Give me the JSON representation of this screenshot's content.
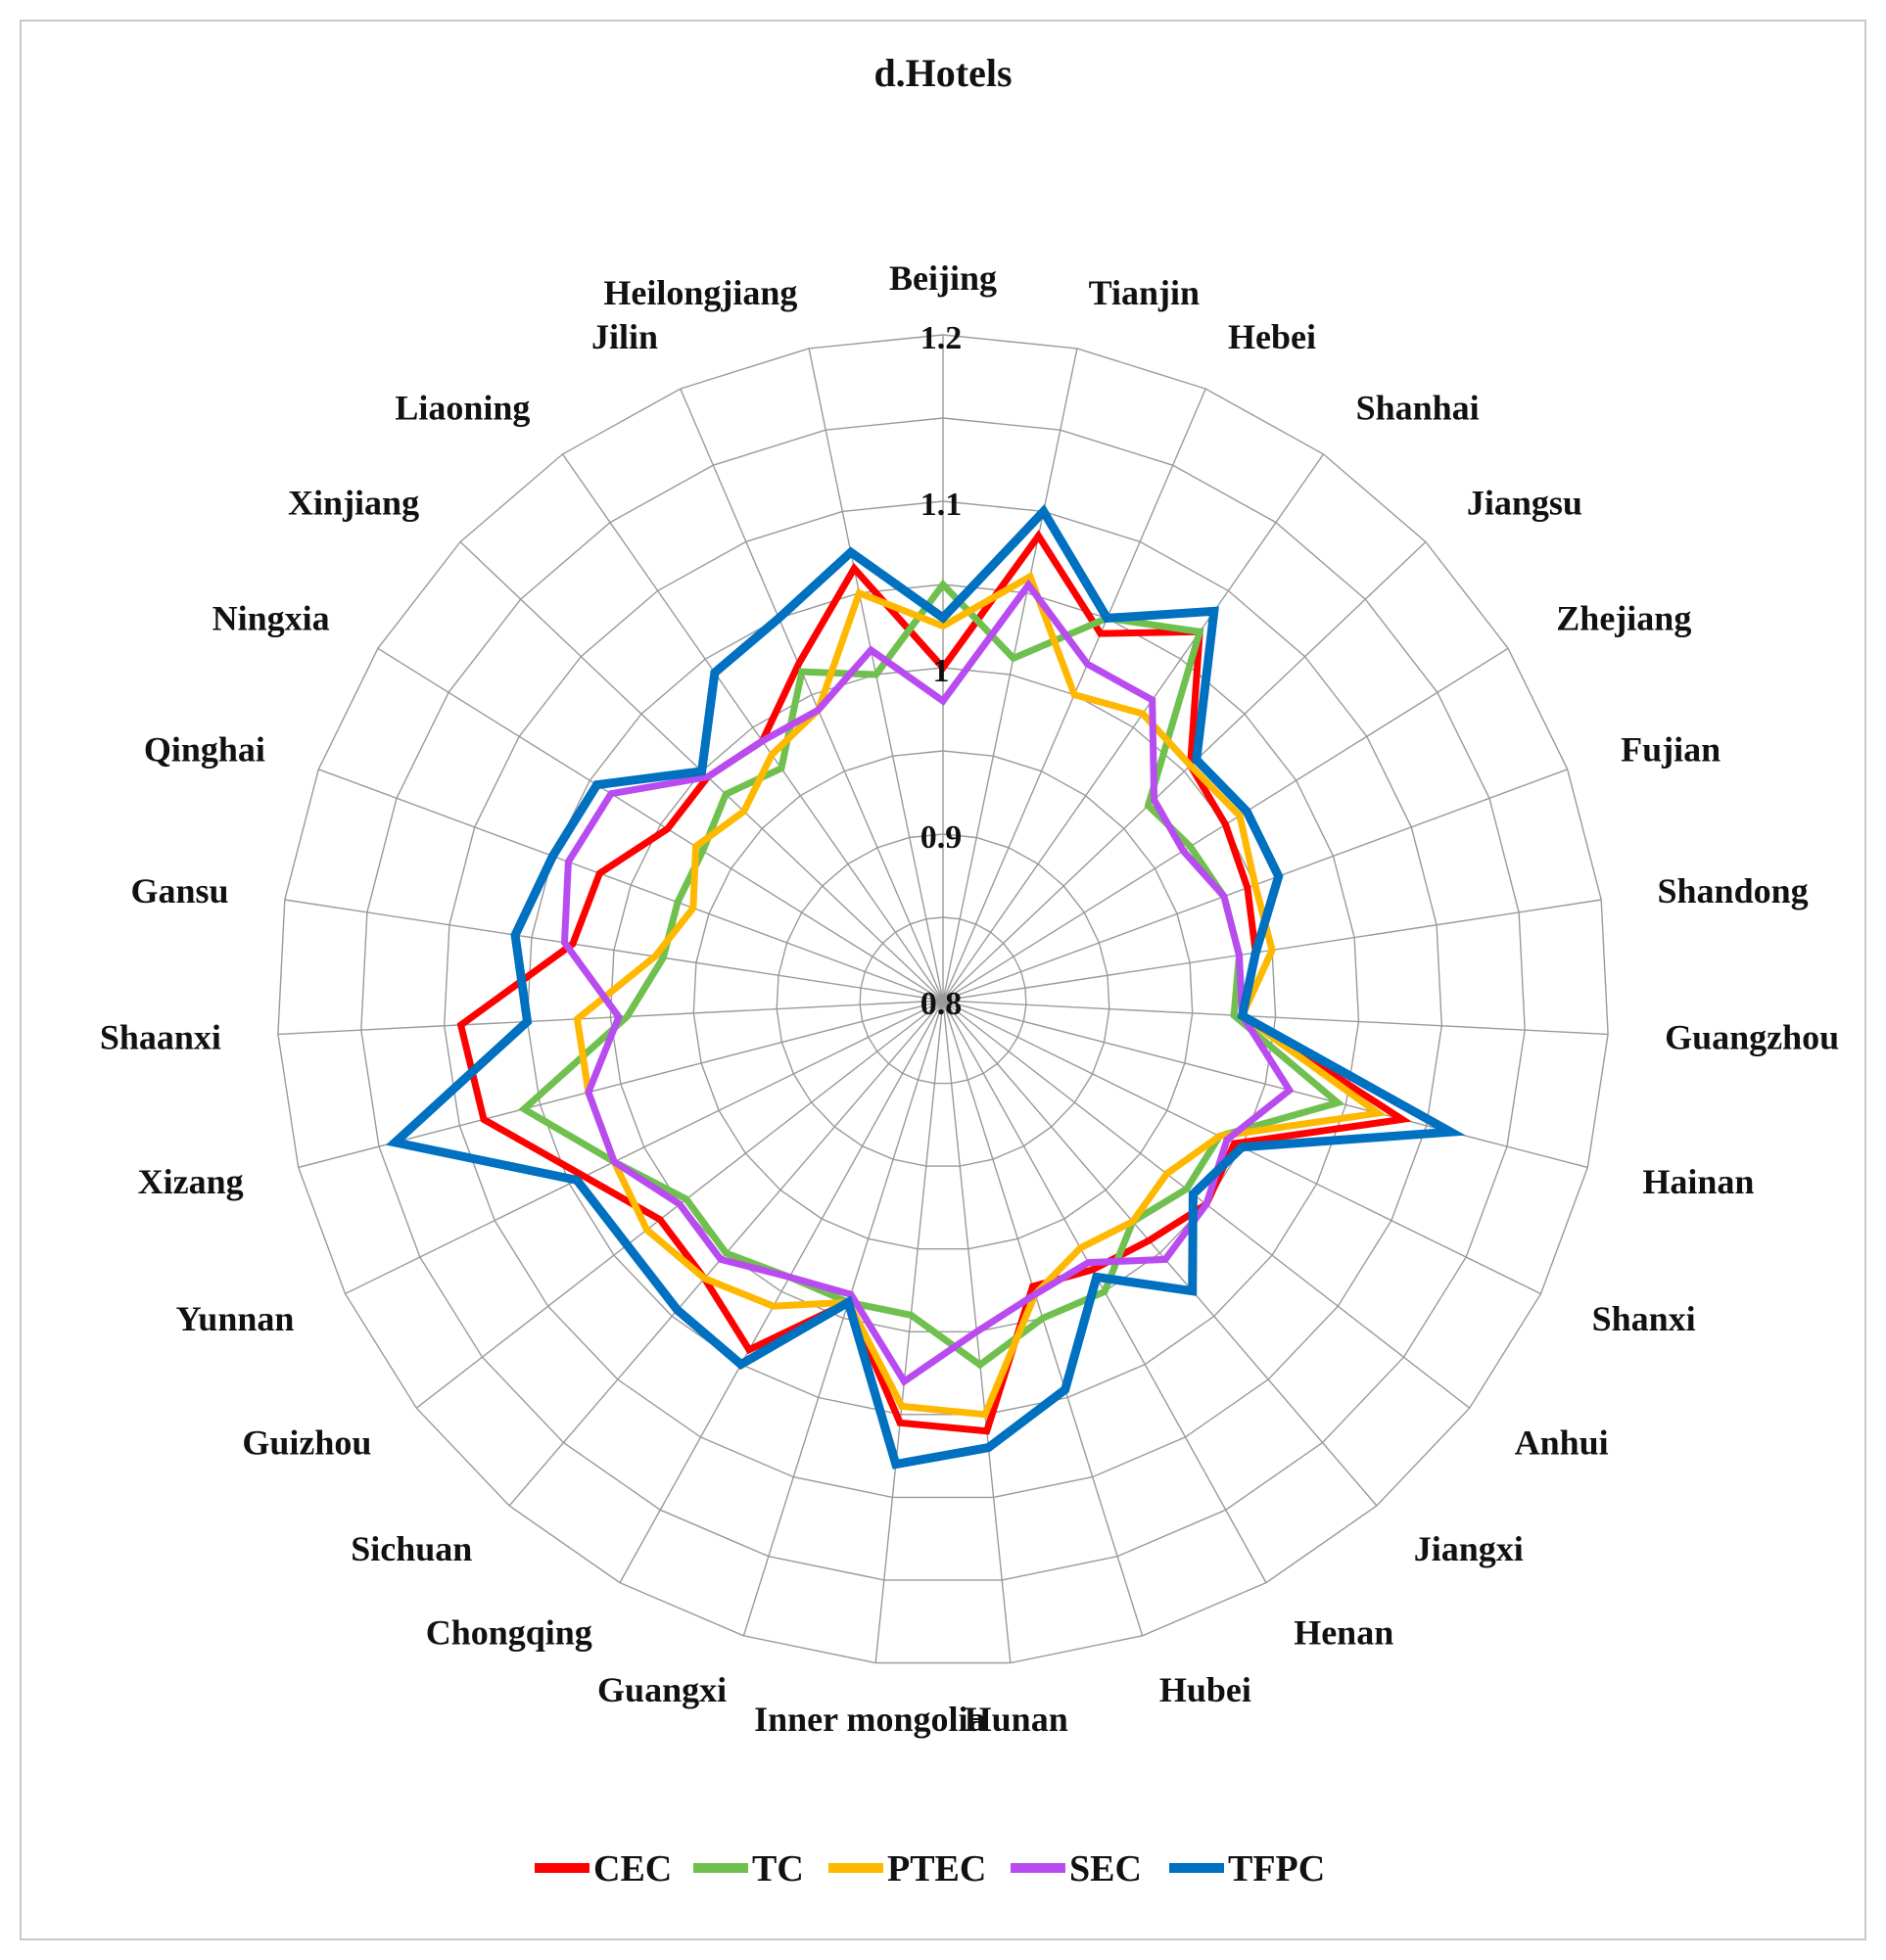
{
  "chart_data": {
    "type": "radar",
    "title": "d.Hotels",
    "categories": [
      "Beijing",
      "Tianjin",
      "Hebei",
      "Shanhai",
      "Jiangsu",
      "Zhejiang",
      "Fujian",
      "Shandong",
      "Guangzhou",
      "Hainan",
      "Shanxi",
      "Anhui",
      "Jiangxi",
      "Henan",
      "Hubei",
      "Hunan",
      "Inner mongolia",
      "Guangxi",
      "Chongqing",
      "Sichuan",
      "Guizhou",
      "Yunnan",
      "Xizang",
      "Shaanxi",
      "Gansu",
      "Qinghai",
      "Ningxia",
      "Xinjiang",
      "Liaoning",
      "Jilin",
      "Heilongjiang"
    ],
    "rlim": [
      0.8,
      1.2
    ],
    "ticks": [
      "0.8",
      "0.9",
      "1",
      "1.1",
      "1.2"
    ],
    "tick_values": [
      0.8,
      0.9,
      1.0,
      1.1,
      1.2
    ],
    "legend_position": "bottom",
    "series": [
      {
        "name": "CEC",
        "color": "#ff0000",
        "values": [
          1.0,
          1.085,
          1.04,
          1.07,
          1.005,
          1.0,
          0.995,
          0.99,
          0.98,
          1.085,
          0.995,
          1.0,
          0.99,
          0.985,
          0.98,
          1.06,
          1.055,
          0.99,
          1.04,
          1.02,
          1.015,
          1.04,
          1.085,
          1.09,
          1.025,
          1.02,
          0.995,
          0.995,
          0.99,
          1.02,
          1.065
        ]
      },
      {
        "name": "TC",
        "color": "#70c050",
        "values": [
          1.05,
          1.01,
          1.05,
          1.07,
          0.97,
          0.975,
          0.98,
          0.98,
          0.975,
          1.045,
          0.985,
          0.985,
          0.975,
          1.0,
          1.0,
          1.02,
          0.99,
          0.99,
          0.99,
          1.0,
          0.995,
          1.02,
          1.06,
          0.99,
          0.97,
          0.97,
          0.97,
          0.98,
          0.97,
          1.015,
          1.0
        ]
      },
      {
        "name": "PTEC",
        "color": "#ffb800",
        "values": [
          1.025,
          1.06,
          1.0,
          1.01,
          1.005,
          1.01,
          1.0,
          1.0,
          0.98,
          1.07,
          0.985,
          0.97,
          0.975,
          0.97,
          0.985,
          1.05,
          1.045,
          0.99,
          1.01,
          1.02,
          1.025,
          1.02,
          1.02,
          1.02,
          0.975,
          0.96,
          0.975,
          0.965,
          0.98,
          0.99,
          1.05
        ]
      },
      {
        "name": "SEC",
        "color": "#b84cf0",
        "values": [
          0.98,
          1.055,
          1.02,
          1.02,
          0.975,
          0.97,
          0.98,
          0.98,
          0.98,
          1.015,
          0.99,
          1.0,
          1.005,
          0.98,
          0.985,
          1.0,
          1.03,
          0.985,
          0.99,
          1.005,
          1.0,
          1.02,
          1.02,
          0.995,
          1.03,
          1.04,
          1.035,
          0.995,
          0.99,
          0.99,
          1.015
        ]
      },
      {
        "name": "TFPC",
        "color": "#0070c0",
        "values": [
          1.03,
          1.1,
          1.05,
          1.085,
          1.01,
          1.015,
          1.015,
          0.99,
          0.98,
          1.115,
          1.0,
          0.99,
          1.03,
          0.99,
          1.045,
          1.07,
          1.08,
          0.99,
          1.05,
          1.045,
          1.04,
          1.045,
          1.14,
          1.05,
          1.06,
          1.05,
          1.045,
          1.0,
          1.04,
          1.05,
          1.075
        ]
      }
    ]
  }
}
